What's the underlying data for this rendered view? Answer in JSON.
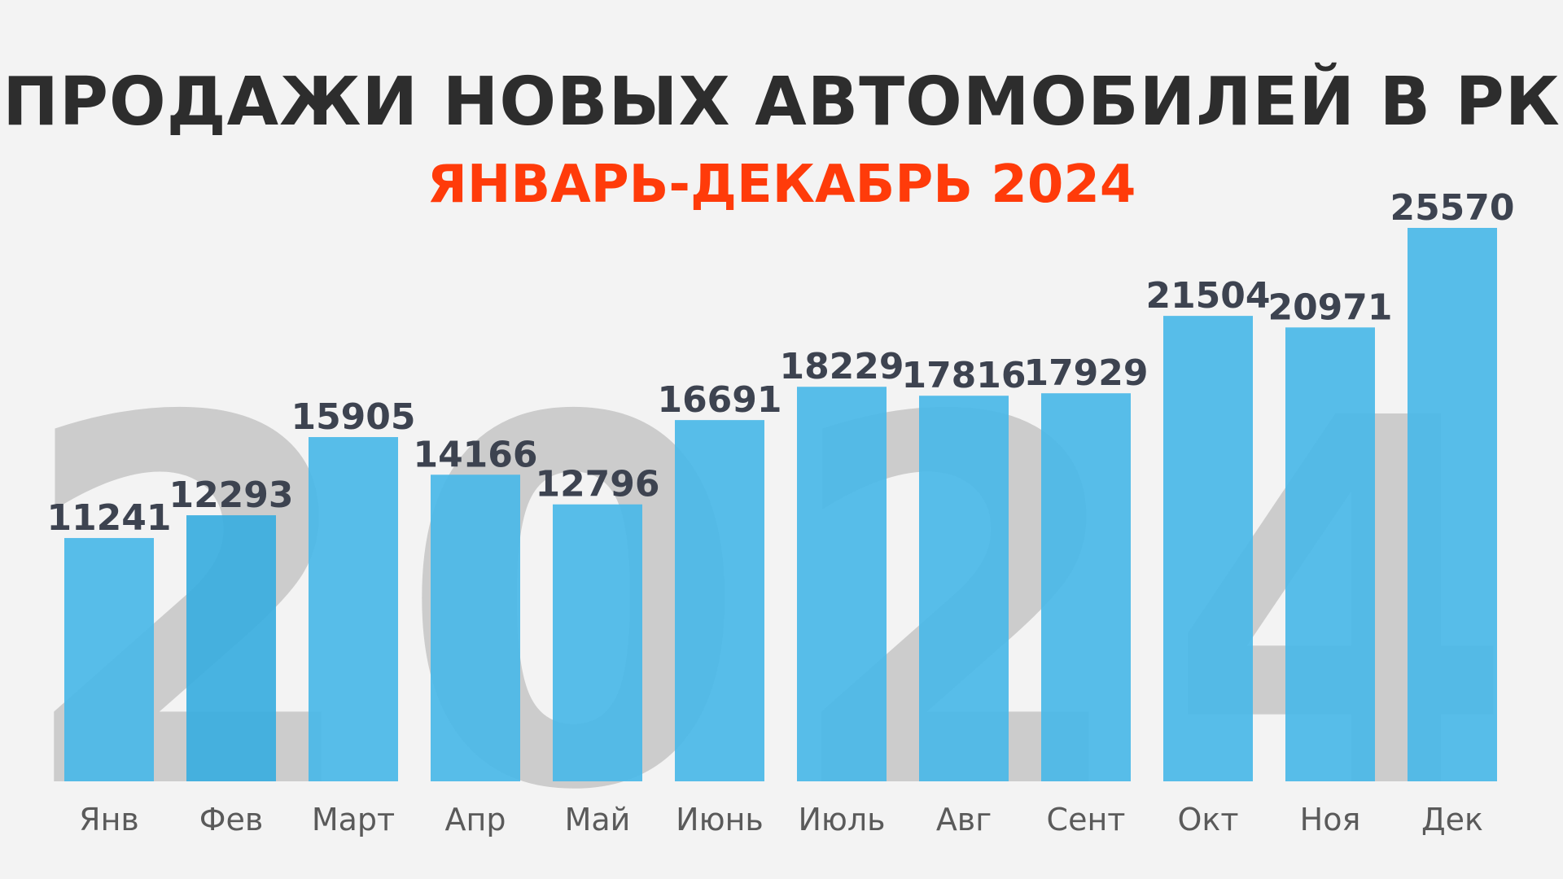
{
  "title": "ПРОДАЖИ НОВЫХ АВТОМОБИЛЕЙ В РК",
  "subtitle": "ЯНВАРЬ-ДЕКАБРЬ 2024",
  "watermark": "2024",
  "colors": {
    "title": "#2d2d2d",
    "subtitle": "#ff3b0a",
    "bar": "#4ab8e8",
    "bar_alt": "#3aaedf",
    "value_label": "#3d4350",
    "category_label": "#5a5a5a",
    "watermark": "#cccccc"
  },
  "chart_data": {
    "type": "bar",
    "categories": [
      "Янв",
      "Фев",
      "Март",
      "Апр",
      "Май",
      "Июнь",
      "Июль",
      "Авг",
      "Сент",
      "Окт",
      "Ноя",
      "Дек"
    ],
    "values": [
      11241,
      12293,
      15905,
      14166,
      12796,
      16691,
      18229,
      17816,
      17929,
      21504,
      20971,
      25570
    ],
    "data_labels": [
      "11241",
      "12293",
      "15905",
      "14166",
      "12796",
      "16691",
      "18229",
      "17816",
      "17929",
      "21504",
      "20971",
      "25570"
    ],
    "ylim": [
      0,
      25570
    ],
    "grid": false,
    "legend": "none"
  }
}
